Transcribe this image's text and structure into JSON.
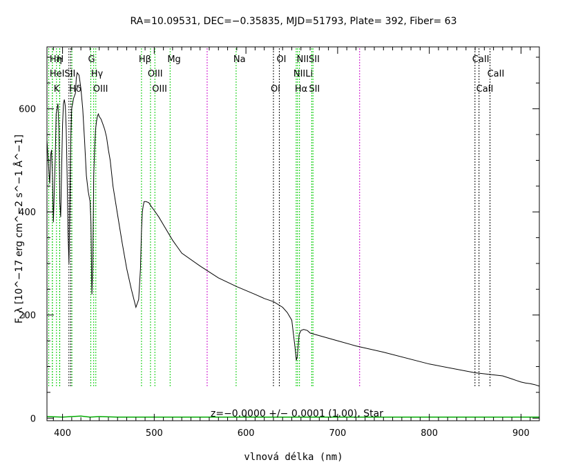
{
  "chart_data": {
    "type": "line",
    "title": "RA=10.09531, DEC=−0.35835, MJD=51793, Plate= 392, Fiber= 63",
    "xlabel": "vlnová délka (nm)",
    "ylabel": "F_λ [10^−17 erg cm^−2 s^−1 Å^−1]",
    "xlim": [
      383,
      920
    ],
    "ylim": [
      -5,
      720
    ],
    "x_ticks": [
      400,
      500,
      600,
      700,
      800,
      900
    ],
    "y_ticks": [
      0,
      200,
      400,
      600
    ],
    "annotation": "z=−0.0000 +/− 0.0001 (1.00), Star",
    "series": [
      {
        "name": "spectrum",
        "color": "#000000",
        "x": [
          383,
          385,
          386,
          387,
          388,
          389,
          390,
          391,
          392,
          393,
          394,
          395,
          396,
          397,
          398,
          399,
          400,
          401,
          402,
          403,
          404,
          405,
          406,
          407,
          408,
          409,
          410,
          411,
          412,
          413,
          414,
          415,
          416,
          418,
          420,
          422,
          424,
          426,
          428,
          430,
          431,
          432,
          433,
          434,
          435,
          436,
          437,
          438,
          439,
          440,
          442,
          444,
          446,
          448,
          450,
          452,
          455,
          460,
          465,
          470,
          475,
          480,
          483,
          485,
          486,
          487,
          488,
          489,
          491,
          494,
          497,
          500,
          505,
          510,
          520,
          530,
          550,
          570,
          590,
          610,
          620,
          630,
          640,
          645,
          650,
          652,
          654,
          655,
          656,
          657,
          658,
          660,
          663,
          667,
          670,
          680,
          700,
          720,
          750,
          800,
          850,
          870,
          880,
          890,
          895,
          900,
          905,
          910,
          915,
          920
        ],
        "y": [
          540,
          480,
          455,
          510,
          520,
          470,
          380,
          440,
          500,
          590,
          600,
          610,
          560,
          420,
          390,
          480,
          570,
          610,
          618,
          605,
          560,
          470,
          360,
          300,
          420,
          540,
          600,
          610,
          620,
          625,
          630,
          660,
          670,
          665,
          640,
          600,
          540,
          470,
          440,
          420,
          380,
          240,
          300,
          470,
          520,
          560,
          575,
          585,
          590,
          585,
          580,
          570,
          560,
          545,
          520,
          500,
          450,
          395,
          340,
          290,
          250,
          215,
          230,
          290,
          360,
          400,
          412,
          420,
          420,
          418,
          410,
          403,
          390,
          375,
          345,
          320,
          295,
          272,
          255,
          240,
          232,
          226,
          215,
          205,
          190,
          160,
          130,
          112,
          120,
          140,
          162,
          170,
          172,
          170,
          165,
          160,
          150,
          140,
          128,
          105,
          88,
          84,
          82,
          76,
          73,
          70,
          68,
          67,
          65,
          62
        ]
      },
      {
        "name": "error",
        "color": "#00aa00",
        "x": [
          383,
          400,
          410,
          420,
          430,
          440,
          460,
          480,
          500,
          550,
          600,
          700,
          800,
          920
        ],
        "y": [
          3,
          2,
          3,
          4,
          2,
          3,
          2,
          2,
          2,
          2,
          2,
          2,
          2,
          2
        ]
      }
    ],
    "lines": [
      {
        "name": "Hη",
        "x": 388.9,
        "color": "#00cc00",
        "row": 0
      },
      {
        "name": "H",
        "x": 396.8,
        "color": "#00cc00",
        "row": 0
      },
      {
        "name": "G",
        "x": 430.8,
        "color": "#00cc00",
        "row": 0
      },
      {
        "name": "Hβ",
        "x": 486.1,
        "color": "#00cc00",
        "row": 0
      },
      {
        "name": "Mg",
        "x": 517.3,
        "color": "#00cc00",
        "row": 0
      },
      {
        "name": "Na",
        "x": 589.3,
        "color": "#00cc00",
        "row": 0
      },
      {
        "name": "OI",
        "x": 636.4,
        "color": "#000000",
        "row": 0
      },
      {
        "name": "NIISII",
        "x": 658.4,
        "color": "#00cc00",
        "row": 0
      },
      {
        "name": "CaII",
        "x": 849.8,
        "color": "#000000",
        "row": 0
      },
      {
        "name": "HeISII",
        "x": 388.9,
        "color": "#00cc00",
        "row": 1
      },
      {
        "name": "Hγ",
        "x": 434.0,
        "color": "#00cc00",
        "row": 1
      },
      {
        "name": "OIII",
        "x": 495.9,
        "color": "#00cc00",
        "row": 1
      },
      {
        "name": "NIILi",
        "x": 654.8,
        "color": "#00cc00",
        "row": 1
      },
      {
        "name": "CaII",
        "x": 866.2,
        "color": "#000000",
        "row": 1
      },
      {
        "name": "K",
        "x": 393.4,
        "color": "#00cc00",
        "row": 2
      },
      {
        "name": "Hδ",
        "x": 410.2,
        "color": "#00cc00",
        "row": 2
      },
      {
        "name": "OIII",
        "x": 436.3,
        "color": "#00cc00",
        "row": 2
      },
      {
        "name": "OIII",
        "x": 500.7,
        "color": "#00cc00",
        "row": 2
      },
      {
        "name": "OI",
        "x": 630.0,
        "color": "#000000",
        "row": 2
      },
      {
        "name": "Hα",
        "x": 656.3,
        "color": "#00cc00",
        "row": 2
      },
      {
        "name": "SII",
        "x": 671.7,
        "color": "#00cc00",
        "row": 2
      },
      {
        "name": "CaII",
        "x": 854.2,
        "color": "#000000",
        "row": 2
      }
    ],
    "extra_lines": [
      {
        "x": 385.0,
        "color": "#00cc00"
      },
      {
        "x": 397.0,
        "color": "#00cc00"
      },
      {
        "x": 407.0,
        "color": "#000000"
      },
      {
        "x": 409.0,
        "color": "#000000"
      },
      {
        "x": 557.7,
        "color": "#cc00cc"
      },
      {
        "x": 724.0,
        "color": "#cc00cc"
      },
      {
        "x": 673.1,
        "color": "#00cc00"
      }
    ]
  }
}
